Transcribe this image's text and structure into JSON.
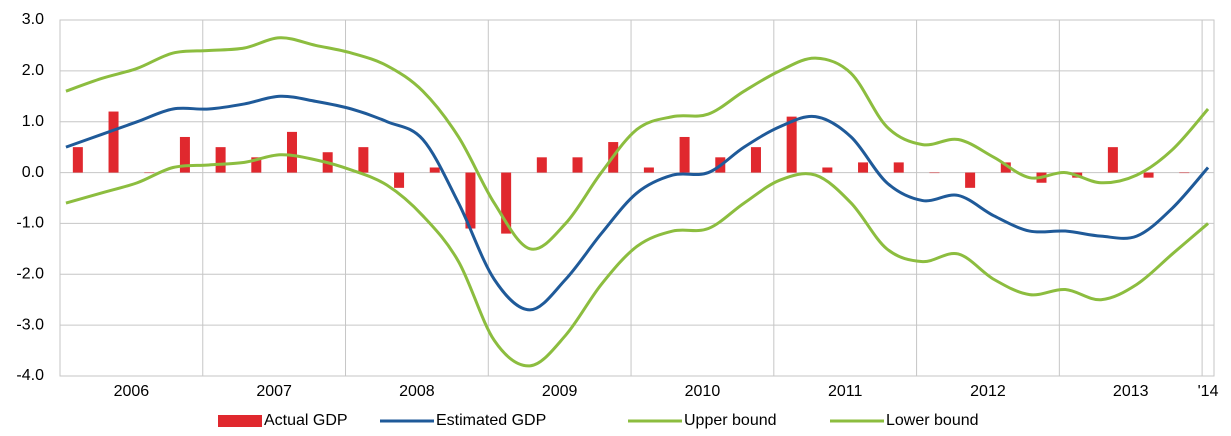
{
  "chart_data": {
    "type": "combo",
    "categories": [
      null,
      null,
      null,
      null,
      null,
      null,
      null,
      null,
      null,
      null,
      null,
      null,
      null,
      null,
      null,
      null,
      null,
      null,
      null,
      null,
      null,
      null,
      null,
      null,
      null,
      null,
      null,
      null,
      null,
      null,
      null,
      null,
      null
    ],
    "year_labels": [
      "2006",
      "2007",
      "2008",
      "2009",
      "2010",
      "2011",
      "2012",
      "2013",
      "'14"
    ],
    "ylim": [
      -4,
      3
    ],
    "yticks": [
      {
        "value": -4,
        "label": "-4.0"
      },
      {
        "value": -3,
        "label": "-3.0"
      },
      {
        "value": -2,
        "label": "-2.0"
      },
      {
        "value": -1,
        "label": "-1.0"
      },
      {
        "value": 0,
        "label": "0.0"
      },
      {
        "value": 1,
        "label": "1.0"
      },
      {
        "value": 2,
        "label": "2.0"
      },
      {
        "value": 3,
        "label": "3.0"
      }
    ],
    "grid": true,
    "legend": "bottom",
    "series": [
      {
        "name": "Actual GDP",
        "type": "bar",
        "color": "#e0282e",
        "values": [
          0.5,
          1.2,
          0,
          0.7,
          0.5,
          0.3,
          0.8,
          0.4,
          0.5,
          -0.3,
          0.1,
          -1.1,
          -1.2,
          0.3,
          0.3,
          0.6,
          0.1,
          0.7,
          0.3,
          0.5,
          1.1,
          0.1,
          0.2,
          0.2,
          0,
          -0.3,
          0.2,
          -0.2,
          -0.1,
          0.5,
          -0.1,
          0,
          null
        ]
      },
      {
        "name": "Estimated GDP",
        "type": "line",
        "color": "#1f5a99",
        "values": [
          0.5,
          0.75,
          1.0,
          1.25,
          1.25,
          1.35,
          1.5,
          1.4,
          1.25,
          1.0,
          0.65,
          -0.6,
          -2.1,
          -2.7,
          -2.1,
          -1.2,
          -0.4,
          -0.05,
          0.0,
          0.5,
          0.9,
          1.1,
          0.7,
          -0.2,
          -0.55,
          -0.45,
          -0.85,
          -1.15,
          -1.15,
          -1.25,
          -1.25,
          -0.7,
          0.1
        ]
      },
      {
        "name": "Upper bound",
        "type": "line",
        "color": "#8cbd3f",
        "values": [
          1.6,
          1.85,
          2.05,
          2.35,
          2.4,
          2.45,
          2.65,
          2.5,
          2.35,
          2.1,
          1.6,
          0.7,
          -0.6,
          -1.5,
          -1.0,
          0.0,
          0.85,
          1.1,
          1.15,
          1.6,
          2.0,
          2.25,
          1.95,
          0.9,
          0.55,
          0.65,
          0.3,
          -0.1,
          0.0,
          -0.2,
          -0.05,
          0.45,
          1.25
        ]
      },
      {
        "name": "Lower bound",
        "type": "line",
        "color": "#8cbd3f",
        "values": [
          -0.6,
          -0.4,
          -0.2,
          0.1,
          0.15,
          0.2,
          0.35,
          0.25,
          0.05,
          -0.25,
          -0.85,
          -1.75,
          -3.3,
          -3.8,
          -3.2,
          -2.2,
          -1.45,
          -1.15,
          -1.1,
          -0.6,
          -0.15,
          -0.05,
          -0.6,
          -1.5,
          -1.75,
          -1.6,
          -2.1,
          -2.4,
          -2.3,
          -2.5,
          -2.2,
          -1.6,
          -1.0
        ]
      }
    ]
  }
}
